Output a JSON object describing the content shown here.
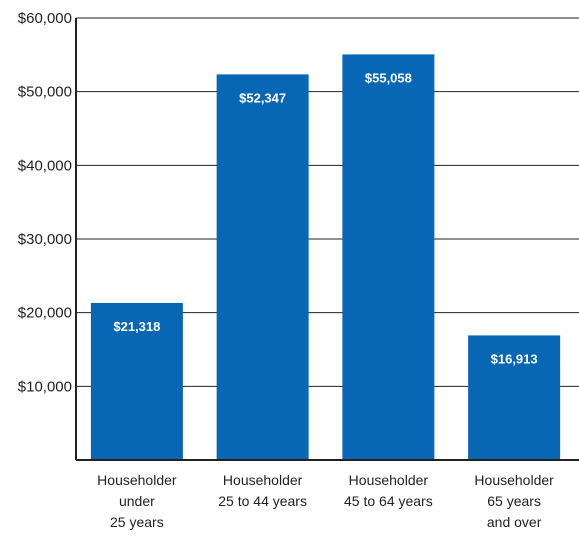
{
  "chart_data": {
    "type": "bar",
    "categories": [
      [
        "Householder",
        "under",
        "25 years"
      ],
      [
        "Householder",
        "25 to 44 years"
      ],
      [
        "Householder",
        "45 to 64 years"
      ],
      [
        "Householder",
        "65 years",
        "and over"
      ]
    ],
    "values": [
      21318,
      52347,
      55058,
      16913
    ],
    "data_labels": [
      "$21,318",
      "$52,347",
      "$55,058",
      "$16,913"
    ],
    "y_ticks": [
      10000,
      20000,
      30000,
      40000,
      50000,
      60000
    ],
    "y_tick_labels": [
      "$10,000",
      "$20,000",
      "$30,000",
      "$40,000",
      "$50,000",
      "$60,000"
    ],
    "ylim": [
      0,
      60000
    ],
    "grid": true,
    "title": "",
    "xlabel": "",
    "ylabel": "",
    "colors": {
      "bar": "#0767b5",
      "label": "#ffffff",
      "axis": "#222222"
    }
  }
}
